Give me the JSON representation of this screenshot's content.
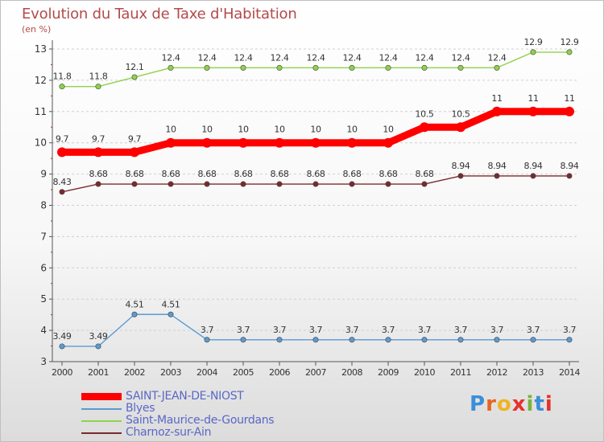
{
  "title": "Evolution du Taux de Taxe d'Habitation",
  "unit": "(en %)",
  "brand": {
    "letters": [
      "P",
      "r",
      "o",
      "x",
      "i",
      "t",
      "i"
    ],
    "colors": [
      "#3b8ed8",
      "#e8641e",
      "#f0b323",
      "#e5322d",
      "#7ab23e",
      "#3b8ed8",
      "#e5322d"
    ]
  },
  "chart_data": {
    "type": "line",
    "title": "Evolution du Taux de Taxe d'Habitation",
    "ylabel": "(en %)",
    "xlabel": "",
    "x": [
      "2000",
      "2001",
      "2002",
      "2003",
      "2004",
      "2005",
      "2006",
      "2007",
      "2008",
      "2009",
      "2010",
      "2011",
      "2012",
      "2013",
      "2014"
    ],
    "ylim": [
      3,
      13
    ],
    "yticks": [
      "3",
      "4",
      "5",
      "6",
      "7",
      "8",
      "9",
      "10",
      "11",
      "12",
      "13"
    ],
    "grid": "horizontal-dashed",
    "legend_position": "bottom-left",
    "series": [
      {
        "name": "Saint-Maurice-de-Gourdans",
        "color": "#8fd24b",
        "values": [
          11.8,
          11.8,
          12.1,
          12.4,
          12.4,
          12.4,
          12.4,
          12.4,
          12.4,
          12.4,
          12.4,
          12.4,
          12.4,
          12.9,
          12.9
        ],
        "labels": [
          "11.8",
          "11.8",
          "12.1",
          "12.4",
          "12.4",
          "12.4",
          "12.4",
          "12.4",
          "12.4",
          "12.4",
          "12.4",
          "12.4",
          "12.4",
          "12.9",
          "12.9"
        ]
      },
      {
        "name": "SAINT-JEAN-DE-NIOST",
        "color": "#ff0000",
        "values": [
          9.7,
          9.7,
          9.7,
          10,
          10,
          10,
          10,
          10,
          10,
          10,
          10.5,
          10.5,
          11,
          11,
          11
        ],
        "labels": [
          "9.7",
          "9.7",
          "9.7",
          "10",
          "10",
          "10",
          "10",
          "10",
          "10",
          "10",
          "10.5",
          "10.5",
          "11",
          "11",
          "11"
        ]
      },
      {
        "name": "Charnoz-sur-Ain",
        "color": "#7a2a2e",
        "values": [
          8.43,
          8.68,
          8.68,
          8.68,
          8.68,
          8.68,
          8.68,
          8.68,
          8.68,
          8.68,
          8.68,
          8.94,
          8.94,
          8.94,
          8.94
        ],
        "labels": [
          "8.43",
          "8.68",
          "8.68",
          "8.68",
          "8.68",
          "8.68",
          "8.68",
          "8.68",
          "8.68",
          "8.68",
          "8.68",
          "8.94",
          "8.94",
          "8.94",
          "8.94"
        ]
      },
      {
        "name": "Blyes",
        "color": "#5b9bd0",
        "values": [
          3.49,
          3.49,
          4.51,
          4.51,
          3.7,
          3.7,
          3.7,
          3.7,
          3.7,
          3.7,
          3.7,
          3.7,
          3.7,
          3.7,
          3.7
        ],
        "labels": [
          "3.49",
          "3.49",
          "4.51",
          "4.51",
          "3.7",
          "3.7",
          "3.7",
          "3.7",
          "3.7",
          "3.7",
          "3.7",
          "3.7",
          "3.7",
          "3.7",
          "3.7"
        ]
      }
    ],
    "legend": [
      "SAINT-JEAN-DE-NIOST",
      "Blyes",
      "Saint-Maurice-de-Gourdans",
      "Charnoz-sur-Ain"
    ]
  }
}
